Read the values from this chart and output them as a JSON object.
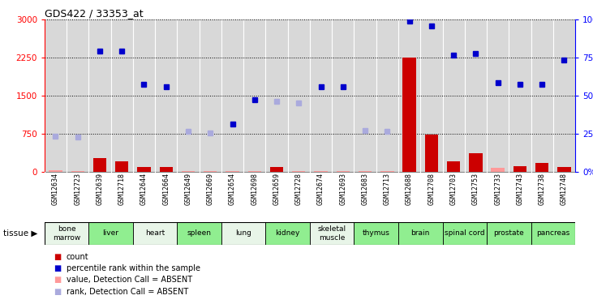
{
  "title": "GDS422 / 33353_at",
  "samples": [
    "GSM12634",
    "GSM12723",
    "GSM12639",
    "GSM12718",
    "GSM12644",
    "GSM12664",
    "GSM12649",
    "GSM12669",
    "GSM12654",
    "GSM12698",
    "GSM12659",
    "GSM12728",
    "GSM12674",
    "GSM12693",
    "GSM12683",
    "GSM12713",
    "GSM12688",
    "GSM12708",
    "GSM12703",
    "GSM12753",
    "GSM12733",
    "GSM12743",
    "GSM12738",
    "GSM12748"
  ],
  "tissues": [
    {
      "name": "bone\nmarrow",
      "start": 0,
      "end": 2,
      "color": "#e8f5e8"
    },
    {
      "name": "liver",
      "start": 2,
      "end": 4,
      "color": "#90EE90"
    },
    {
      "name": "heart",
      "start": 4,
      "end": 6,
      "color": "#e8f5e8"
    },
    {
      "name": "spleen",
      "start": 6,
      "end": 8,
      "color": "#90EE90"
    },
    {
      "name": "lung",
      "start": 8,
      "end": 10,
      "color": "#e8f5e8"
    },
    {
      "name": "kidney",
      "start": 10,
      "end": 12,
      "color": "#90EE90"
    },
    {
      "name": "skeletal\nmuscle",
      "start": 12,
      "end": 14,
      "color": "#e8f5e8"
    },
    {
      "name": "thymus",
      "start": 14,
      "end": 16,
      "color": "#90EE90"
    },
    {
      "name": "brain",
      "start": 16,
      "end": 18,
      "color": "#90EE90"
    },
    {
      "name": "spinal cord",
      "start": 18,
      "end": 20,
      "color": "#90EE90"
    },
    {
      "name": "prostate",
      "start": 20,
      "end": 22,
      "color": "#90EE90"
    },
    {
      "name": "pancreas",
      "start": 22,
      "end": 24,
      "color": "#90EE90"
    }
  ],
  "count_values": [
    30,
    20,
    270,
    200,
    90,
    100,
    20,
    10,
    10,
    20,
    90,
    10,
    10,
    20,
    20,
    10,
    2260,
    740,
    200,
    360,
    80,
    110,
    180,
    90
  ],
  "count_absent": [
    true,
    true,
    false,
    false,
    false,
    false,
    true,
    true,
    true,
    true,
    false,
    true,
    true,
    true,
    true,
    true,
    false,
    false,
    false,
    false,
    true,
    false,
    false,
    false
  ],
  "percentile_values": [
    700,
    680,
    2380,
    2380,
    1720,
    1680,
    800,
    770,
    940,
    1420,
    1390,
    1360,
    1680,
    1680,
    820,
    800,
    2980,
    2880,
    2300,
    2340,
    1760,
    1720,
    1720,
    2210
  ],
  "percentile_absent": [
    true,
    true,
    false,
    false,
    false,
    false,
    true,
    true,
    false,
    false,
    true,
    true,
    false,
    false,
    true,
    true,
    false,
    false,
    false,
    false,
    false,
    false,
    false,
    false
  ],
  "ylim_left": [
    0,
    3000
  ],
  "ylim_right": [
    0,
    100
  ],
  "yticks_left": [
    0,
    750,
    1500,
    2250,
    3000
  ],
  "yticks_right": [
    0,
    25,
    50,
    75,
    100
  ],
  "bar_color_present": "#CC0000",
  "bar_color_absent": "#FF9999",
  "dot_color_present": "#0000CC",
  "dot_color_absent": "#AAAADD",
  "bg_color": "#D8D8D8",
  "legend": [
    {
      "label": "count",
      "color": "#CC0000"
    },
    {
      "label": "percentile rank within the sample",
      "color": "#0000CC"
    },
    {
      "label": "value, Detection Call = ABSENT",
      "color": "#FF9999"
    },
    {
      "label": "rank, Detection Call = ABSENT",
      "color": "#AAAADD"
    }
  ]
}
